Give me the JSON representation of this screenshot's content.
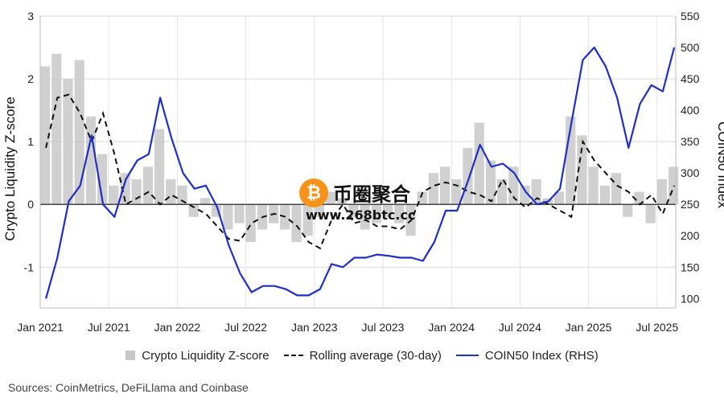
{
  "chart_data": {
    "type": "line",
    "title": "",
    "ylabel": "Crypto Liquidity Z-score",
    "y2label": "COIN50 Index",
    "ylim": [
      -1.65,
      3.0
    ],
    "y2lim": [
      85,
      550
    ],
    "yticks": [
      "3",
      "2",
      "1",
      "0",
      "-1"
    ],
    "y2ticks": [
      "550",
      "500",
      "450",
      "400",
      "350",
      "300",
      "250",
      "200",
      "150",
      "100"
    ],
    "xticks": [
      "Jan 2021",
      "Jul 2021",
      "Jan 2022",
      "Jul 2022",
      "Jan 2023",
      "Jul 2023",
      "Jan 2024",
      "Jul 2024",
      "Jan 2025",
      "Jul 2025"
    ],
    "grid": true,
    "legend_position": "bottom",
    "series": [
      {
        "name": "Crypto Liquidity Z-score",
        "kind": "bar",
        "color": "#c8c8c8",
        "x": [
          "2021-01",
          "2021-02",
          "2021-03",
          "2021-04",
          "2021-05",
          "2021-06",
          "2021-07",
          "2021-08",
          "2021-09",
          "2021-10",
          "2021-11",
          "2021-12",
          "2022-01",
          "2022-02",
          "2022-03",
          "2022-04",
          "2022-05",
          "2022-06",
          "2022-07",
          "2022-08",
          "2022-09",
          "2022-10",
          "2022-11",
          "2022-12",
          "2023-01",
          "2023-02",
          "2023-03",
          "2023-04",
          "2023-05",
          "2023-06",
          "2023-07",
          "2023-08",
          "2023-09",
          "2023-10",
          "2023-11",
          "2023-12",
          "2024-01",
          "2024-02",
          "2024-03",
          "2024-04",
          "2024-05",
          "2024-06",
          "2024-07",
          "2024-08",
          "2024-09",
          "2024-10",
          "2024-11",
          "2024-12",
          "2025-01",
          "2025-02",
          "2025-03",
          "2025-04",
          "2025-05",
          "2025-06",
          "2025-07",
          "2025-08"
        ],
        "values": [
          2.2,
          2.4,
          2.0,
          2.3,
          1.4,
          0.8,
          0.3,
          0.5,
          0.4,
          0.6,
          1.2,
          0.4,
          0.3,
          -0.2,
          0.1,
          -0.2,
          -0.4,
          -0.3,
          -0.6,
          -0.4,
          -0.3,
          -0.4,
          -0.6,
          -0.5,
          -0.2,
          0.2,
          0.1,
          -0.2,
          -0.4,
          -0.3,
          -0.2,
          -0.3,
          -0.5,
          0.2,
          0.5,
          0.6,
          0.4,
          0.9,
          1.3,
          0.7,
          0.4,
          0.6,
          0.3,
          0.4,
          0.1,
          0.2,
          1.4,
          1.1,
          0.6,
          0.3,
          0.5,
          -0.2,
          0.2,
          -0.3,
          0.4,
          0.6
        ]
      },
      {
        "name": "Rolling average (30-day)",
        "kind": "line",
        "style": "dashed",
        "color": "#111111",
        "x": [
          "2021-01",
          "2021-02",
          "2021-03",
          "2021-04",
          "2021-05",
          "2021-06",
          "2021-07",
          "2021-08",
          "2021-09",
          "2021-10",
          "2021-11",
          "2021-12",
          "2022-01",
          "2022-02",
          "2022-03",
          "2022-04",
          "2022-05",
          "2022-06",
          "2022-07",
          "2022-08",
          "2022-09",
          "2022-10",
          "2022-11",
          "2022-12",
          "2023-01",
          "2023-02",
          "2023-03",
          "2023-04",
          "2023-05",
          "2023-06",
          "2023-07",
          "2023-08",
          "2023-09",
          "2023-10",
          "2023-11",
          "2023-12",
          "2024-01",
          "2024-02",
          "2024-03",
          "2024-04",
          "2024-05",
          "2024-06",
          "2024-07",
          "2024-08",
          "2024-09",
          "2024-10",
          "2024-11",
          "2024-12",
          "2025-01",
          "2025-02",
          "2025-03",
          "2025-04",
          "2025-05",
          "2025-06",
          "2025-07",
          "2025-08"
        ],
        "values": [
          0.9,
          1.7,
          1.75,
          1.45,
          1.0,
          1.45,
          0.8,
          0.0,
          0.1,
          0.2,
          0.0,
          0.15,
          0.05,
          -0.05,
          -0.15,
          -0.35,
          -0.55,
          -0.58,
          -0.3,
          -0.2,
          -0.15,
          -0.2,
          -0.35,
          -0.6,
          -0.7,
          -0.25,
          0.0,
          -0.3,
          -0.25,
          -0.35,
          -0.35,
          -0.4,
          -0.25,
          0.2,
          0.3,
          0.35,
          0.3,
          0.2,
          0.15,
          0.05,
          0.4,
          0.1,
          -0.05,
          0.1,
          0.0,
          -0.1,
          -0.2,
          1.0,
          0.7,
          0.5,
          0.3,
          0.2,
          0.0,
          0.15,
          -0.15,
          0.3
        ]
      },
      {
        "name": "COIN50 Index (RHS)",
        "kind": "line",
        "axis": "right",
        "color": "#1f2fc6",
        "x": [
          "2021-01",
          "2021-02",
          "2021-03",
          "2021-04",
          "2021-05",
          "2021-06",
          "2021-07",
          "2021-08",
          "2021-09",
          "2021-10",
          "2021-11",
          "2021-12",
          "2022-01",
          "2022-02",
          "2022-03",
          "2022-04",
          "2022-05",
          "2022-06",
          "2022-07",
          "2022-08",
          "2022-09",
          "2022-10",
          "2022-11",
          "2022-12",
          "2023-01",
          "2023-02",
          "2023-03",
          "2023-04",
          "2023-05",
          "2023-06",
          "2023-07",
          "2023-08",
          "2023-09",
          "2023-10",
          "2023-11",
          "2023-12",
          "2024-01",
          "2024-02",
          "2024-03",
          "2024-04",
          "2024-05",
          "2024-06",
          "2024-07",
          "2024-08",
          "2024-09",
          "2024-10",
          "2024-11",
          "2024-12",
          "2025-01",
          "2025-02",
          "2025-03",
          "2025-04",
          "2025-05",
          "2025-06",
          "2025-07",
          "2025-08"
        ],
        "values": [
          100,
          165,
          255,
          280,
          360,
          250,
          230,
          290,
          320,
          330,
          420,
          355,
          300,
          275,
          280,
          245,
          185,
          140,
          110,
          120,
          120,
          115,
          105,
          105,
          115,
          155,
          150,
          165,
          165,
          170,
          168,
          165,
          165,
          160,
          190,
          240,
          240,
          290,
          345,
          310,
          315,
          300,
          270,
          250,
          255,
          275,
          380,
          480,
          500,
          470,
          420,
          340,
          410,
          440,
          430,
          500
        ]
      }
    ]
  },
  "legend": {
    "zscore": "Crypto Liquidity Z-score",
    "rolling": "Rolling average (30-day)",
    "coin50": "COIN50 Index (RHS)"
  },
  "source": "Sources: CoinMetrics, DeFiLlama and Coinbase",
  "watermark": {
    "coin_symbol": "₿",
    "name": "币圈聚合",
    "url": "www.268btc.cc"
  }
}
